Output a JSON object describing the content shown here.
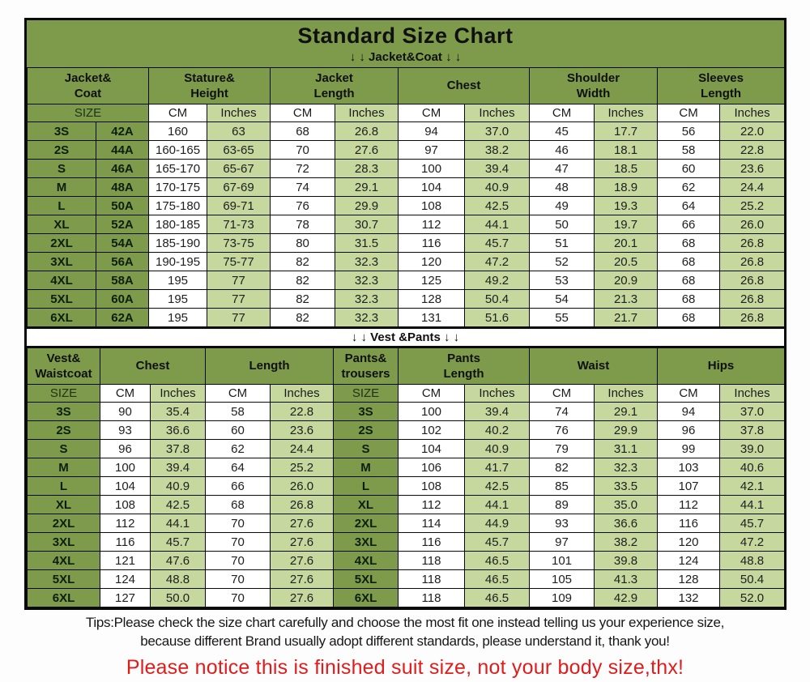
{
  "title": "Standard Size Chart",
  "colors": {
    "header_green": "#7d9b4b",
    "light_green": "#c6d89e",
    "notice_red": "#e21b1b"
  },
  "jacket_section": {
    "subtitle": "↓ ↓  Jacket&Coat ↓ ↓",
    "table": {
      "groups": [
        {
          "label": "Jacket&\nCoat",
          "span": 2
        },
        {
          "label": "Stature&\nHeight",
          "span": 2
        },
        {
          "label": "Jacket\nLength",
          "span": 2
        },
        {
          "label": "Chest",
          "span": 2
        },
        {
          "label": "Shoulder\nWidth",
          "span": 2
        },
        {
          "label": "Sleeves\nLength",
          "span": 2
        }
      ],
      "subheader": [
        {
          "label": "SIZE",
          "span": 2
        },
        {
          "label": "CM"
        },
        {
          "label": "Inches"
        },
        {
          "label": "CM"
        },
        {
          "label": "Inches"
        },
        {
          "label": "CM"
        },
        {
          "label": "Inches"
        },
        {
          "label": "CM"
        },
        {
          "label": "Inches"
        },
        {
          "label": "CM"
        },
        {
          "label": "Inches"
        }
      ],
      "rows": [
        [
          "3S",
          "42A",
          "160",
          "63",
          "68",
          "26.8",
          "94",
          "37.0",
          "45",
          "17.7",
          "56",
          "22.0"
        ],
        [
          "2S",
          "44A",
          "160-165",
          "63-65",
          "70",
          "27.6",
          "97",
          "38.2",
          "46",
          "18.1",
          "58",
          "22.8"
        ],
        [
          "S",
          "46A",
          "165-170",
          "65-67",
          "72",
          "28.3",
          "100",
          "39.4",
          "47",
          "18.5",
          "60",
          "23.6"
        ],
        [
          "M",
          "48A",
          "170-175",
          "67-69",
          "74",
          "29.1",
          "104",
          "40.9",
          "48",
          "18.9",
          "62",
          "24.4"
        ],
        [
          "L",
          "50A",
          "175-180",
          "69-71",
          "76",
          "29.9",
          "108",
          "42.5",
          "49",
          "19.3",
          "64",
          "25.2"
        ],
        [
          "XL",
          "52A",
          "180-185",
          "71-73",
          "78",
          "30.7",
          "112",
          "44.1",
          "50",
          "19.7",
          "66",
          "26.0"
        ],
        [
          "2XL",
          "54A",
          "185-190",
          "73-75",
          "80",
          "31.5",
          "116",
          "45.7",
          "51",
          "20.1",
          "68",
          "26.8"
        ],
        [
          "3XL",
          "56A",
          "190-195",
          "75-77",
          "82",
          "32.3",
          "120",
          "47.2",
          "52",
          "20.5",
          "68",
          "26.8"
        ],
        [
          "4XL",
          "58A",
          "195",
          "77",
          "82",
          "32.3",
          "125",
          "49.2",
          "53",
          "20.9",
          "68",
          "26.8"
        ],
        [
          "5XL",
          "60A",
          "195",
          "77",
          "82",
          "32.3",
          "128",
          "50.4",
          "54",
          "21.3",
          "68",
          "26.8"
        ],
        [
          "6XL",
          "62A",
          "195",
          "77",
          "82",
          "32.3",
          "131",
          "51.6",
          "55",
          "21.7",
          "68",
          "26.8"
        ]
      ]
    }
  },
  "vest_section": {
    "subtitle": "↓ ↓  Vest &Pants ↓ ↓",
    "table": {
      "groups": [
        {
          "label": "Vest&\nWaistcoat",
          "span": 1
        },
        {
          "label": "Chest",
          "span": 2
        },
        {
          "label": "Length",
          "span": 2
        },
        {
          "label": "Pants&\ntrousers",
          "span": 1
        },
        {
          "label": "Pants\nLength",
          "span": 2
        },
        {
          "label": "Waist",
          "span": 2
        },
        {
          "label": "Hips",
          "span": 2
        }
      ],
      "subheader": [
        {
          "label": "SIZE"
        },
        {
          "label": "CM"
        },
        {
          "label": "Inches"
        },
        {
          "label": "CM"
        },
        {
          "label": "Inches"
        },
        {
          "label": "SIZE"
        },
        {
          "label": "CM"
        },
        {
          "label": "Inches"
        },
        {
          "label": "CM"
        },
        {
          "label": "Inches"
        },
        {
          "label": "CM"
        },
        {
          "label": "Inches"
        }
      ],
      "rows": [
        [
          "3S",
          "90",
          "35.4",
          "58",
          "22.8",
          "3S",
          "100",
          "39.4",
          "74",
          "29.1",
          "94",
          "37.0"
        ],
        [
          "2S",
          "93",
          "36.6",
          "60",
          "23.6",
          "2S",
          "102",
          "40.2",
          "76",
          "29.9",
          "96",
          "37.8"
        ],
        [
          "S",
          "96",
          "37.8",
          "62",
          "24.4",
          "S",
          "104",
          "40.9",
          "79",
          "31.1",
          "99",
          "39.0"
        ],
        [
          "M",
          "100",
          "39.4",
          "64",
          "25.2",
          "M",
          "106",
          "41.7",
          "82",
          "32.3",
          "103",
          "40.6"
        ],
        [
          "L",
          "104",
          "40.9",
          "66",
          "26.0",
          "L",
          "108",
          "42.5",
          "85",
          "33.5",
          "107",
          "42.1"
        ],
        [
          "XL",
          "108",
          "42.5",
          "68",
          "26.8",
          "XL",
          "112",
          "44.1",
          "89",
          "35.0",
          "112",
          "44.1"
        ],
        [
          "2XL",
          "112",
          "44.1",
          "70",
          "27.6",
          "2XL",
          "114",
          "44.9",
          "93",
          "36.6",
          "116",
          "45.7"
        ],
        [
          "3XL",
          "116",
          "45.7",
          "70",
          "27.6",
          "3XL",
          "116",
          "45.7",
          "97",
          "38.2",
          "120",
          "47.2"
        ],
        [
          "4XL",
          "121",
          "47.6",
          "70",
          "27.6",
          "4XL",
          "118",
          "46.5",
          "101",
          "39.8",
          "124",
          "48.8"
        ],
        [
          "5XL",
          "124",
          "48.8",
          "70",
          "27.6",
          "5XL",
          "118",
          "46.5",
          "105",
          "41.3",
          "128",
          "50.4"
        ],
        [
          "6XL",
          "127",
          "50.0",
          "70",
          "27.6",
          "6XL",
          "118",
          "46.5",
          "109",
          "42.9",
          "132",
          "52.0"
        ]
      ]
    }
  },
  "tips": {
    "line1": "Tips:Please check the size chart carefully and choose the most fit one instead telling us your experience size,",
    "line2": "because different Brand usually adopt different standards, please understand it, thank you!"
  },
  "notice": "Please notice this is finished suit size, not your body size,thx!"
}
